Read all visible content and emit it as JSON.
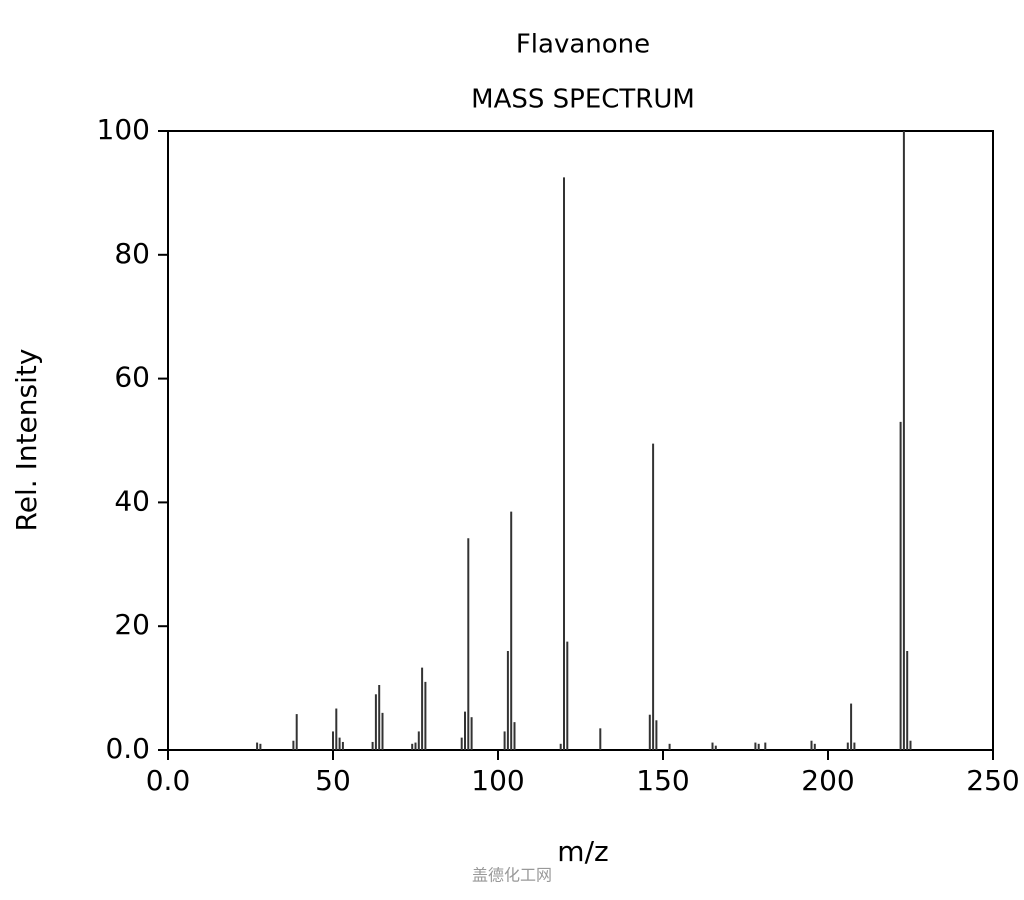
{
  "chart_data": {
    "type": "bar",
    "title": "Flavanone",
    "subtitle": "MASS SPECTRUM",
    "x_label": "m/z",
    "y_label": "Rel. Intensity",
    "watermark": "盖德化工网",
    "color": "#333333",
    "x": [
      27,
      28,
      38,
      39,
      50,
      51,
      52,
      53,
      62,
      63,
      64,
      65,
      74,
      75,
      76,
      77,
      78,
      89,
      90,
      91,
      92,
      102,
      103,
      104,
      105,
      119,
      120,
      121,
      131,
      146,
      147,
      148,
      152,
      165,
      166,
      178,
      179,
      181,
      195,
      196,
      206,
      207,
      208,
      222,
      223,
      224,
      225
    ],
    "values": [
      1.2,
      1,
      1.5,
      5.8,
      3,
      6.7,
      2,
      1.3,
      1.3,
      9,
      10.5,
      6,
      1,
      1.2,
      3,
      13.3,
      11,
      2,
      6.2,
      34.2,
      5.3,
      3,
      16,
      38.5,
      4.5,
      1,
      92.5,
      17.5,
      3.5,
      5.7,
      49.5,
      4.8,
      1,
      1.2,
      0.7,
      1.2,
      1,
      1.2,
      1.5,
      1,
      1.2,
      7.5,
      1.2,
      53,
      100,
      16,
      1.5
    ],
    "xlim": [
      0,
      250
    ],
    "xticks": [
      {
        "value": 0,
        "label": "0.0"
      },
      50,
      100,
      150,
      200,
      250
    ],
    "ylim": [
      0,
      100
    ],
    "yticks": [
      {
        "value": 0,
        "label": "0.0"
      },
      20,
      40,
      60,
      80,
      100
    ]
  }
}
